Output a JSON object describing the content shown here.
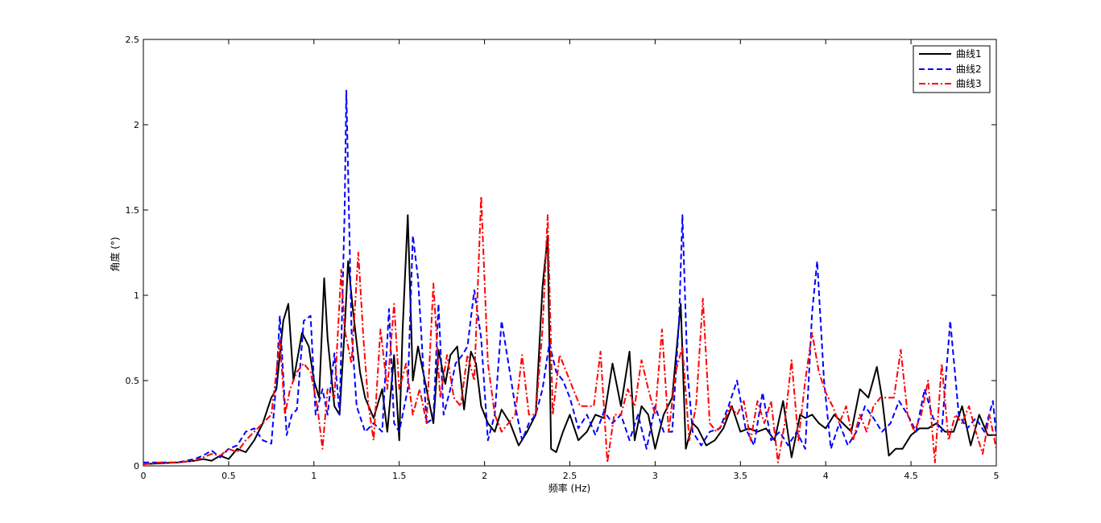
{
  "chart_data": {
    "type": "line",
    "xlabel": "频率 (Hz)",
    "ylabel": "角度 (°)",
    "xlim": [
      0,
      5
    ],
    "ylim": [
      0,
      2.5
    ],
    "xticks": [
      0,
      0.5,
      1,
      1.5,
      2,
      2.5,
      3,
      3.5,
      4,
      4.5,
      5
    ],
    "xtick_labels": [
      "0",
      "0.5",
      "1",
      "1.5",
      "2",
      "2.5",
      "3",
      "3.5",
      "4",
      "4.5",
      "5"
    ],
    "yticks": [
      0,
      0.5,
      1,
      1.5,
      2,
      2.5
    ],
    "ytick_labels": [
      "0",
      "0.5",
      "1",
      "1.5",
      "2",
      "2.5"
    ],
    "grid": false,
    "legend_position": "top-right",
    "series": [
      {
        "name": "曲线1",
        "color": "#000000",
        "dash": "solid",
        "x": [
          0,
          0.1,
          0.2,
          0.3,
          0.35,
          0.4,
          0.45,
          0.5,
          0.55,
          0.6,
          0.65,
          0.7,
          0.75,
          0.78,
          0.82,
          0.85,
          0.88,
          0.93,
          0.97,
          1.0,
          1.03,
          1.06,
          1.08,
          1.12,
          1.15,
          1.18,
          1.2,
          1.23,
          1.27,
          1.3,
          1.35,
          1.4,
          1.43,
          1.47,
          1.5,
          1.52,
          1.55,
          1.58,
          1.61,
          1.65,
          1.7,
          1.73,
          1.77,
          1.8,
          1.84,
          1.88,
          1.92,
          1.95,
          1.98,
          2.02,
          2.06,
          2.1,
          2.15,
          2.2,
          2.25,
          2.3,
          2.34,
          2.37,
          2.39,
          2.42,
          2.46,
          2.5,
          2.55,
          2.6,
          2.65,
          2.7,
          2.75,
          2.8,
          2.85,
          2.88,
          2.92,
          2.96,
          3.0,
          3.05,
          3.1,
          3.15,
          3.18,
          3.22,
          3.25,
          3.3,
          3.35,
          3.4,
          3.45,
          3.5,
          3.55,
          3.6,
          3.65,
          3.7,
          3.75,
          3.8,
          3.85,
          3.88,
          3.92,
          3.96,
          4.0,
          4.05,
          4.1,
          4.15,
          4.2,
          4.25,
          4.3,
          4.33,
          4.37,
          4.41,
          4.45,
          4.5,
          4.55,
          4.6,
          4.65,
          4.7,
          4.75,
          4.8,
          4.85,
          4.9,
          4.95,
          5.0
        ],
        "y": [
          0.01,
          0.015,
          0.02,
          0.03,
          0.04,
          0.03,
          0.06,
          0.04,
          0.1,
          0.08,
          0.15,
          0.25,
          0.4,
          0.45,
          0.85,
          0.95,
          0.5,
          0.78,
          0.7,
          0.5,
          0.4,
          1.1,
          0.75,
          0.35,
          0.3,
          0.8,
          1.2,
          0.9,
          0.55,
          0.4,
          0.28,
          0.45,
          0.2,
          0.65,
          0.15,
          0.8,
          1.47,
          0.5,
          0.7,
          0.5,
          0.25,
          0.68,
          0.48,
          0.65,
          0.7,
          0.33,
          0.67,
          0.6,
          0.35,
          0.25,
          0.2,
          0.33,
          0.25,
          0.12,
          0.2,
          0.3,
          1.05,
          1.35,
          0.1,
          0.08,
          0.2,
          0.3,
          0.15,
          0.2,
          0.3,
          0.28,
          0.6,
          0.35,
          0.67,
          0.15,
          0.35,
          0.3,
          0.1,
          0.3,
          0.4,
          0.95,
          0.1,
          0.25,
          0.22,
          0.12,
          0.15,
          0.22,
          0.35,
          0.2,
          0.22,
          0.2,
          0.22,
          0.15,
          0.38,
          0.05,
          0.3,
          0.28,
          0.3,
          0.25,
          0.22,
          0.3,
          0.25,
          0.2,
          0.45,
          0.4,
          0.58,
          0.4,
          0.06,
          0.1,
          0.1,
          0.18,
          0.22,
          0.22,
          0.25,
          0.2,
          0.2,
          0.35,
          0.12,
          0.3,
          0.18,
          0.18
        ]
      },
      {
        "name": "曲线2",
        "color": "#0000ff",
        "dash": "dashed",
        "x": [
          0,
          0.1,
          0.2,
          0.3,
          0.35,
          0.4,
          0.45,
          0.5,
          0.55,
          0.6,
          0.65,
          0.7,
          0.75,
          0.78,
          0.8,
          0.84,
          0.87,
          0.9,
          0.94,
          0.98,
          1.01,
          1.05,
          1.08,
          1.12,
          1.15,
          1.18,
          1.19,
          1.22,
          1.25,
          1.3,
          1.35,
          1.4,
          1.44,
          1.47,
          1.5,
          1.55,
          1.58,
          1.61,
          1.66,
          1.7,
          1.73,
          1.76,
          1.8,
          1.83,
          1.87,
          1.9,
          1.94,
          1.98,
          2.02,
          2.06,
          2.1,
          2.14,
          2.18,
          2.22,
          2.26,
          2.3,
          2.34,
          2.38,
          2.42,
          2.46,
          2.5,
          2.55,
          2.6,
          2.65,
          2.7,
          2.75,
          2.8,
          2.85,
          2.9,
          2.95,
          3.0,
          3.05,
          3.1,
          3.14,
          3.16,
          3.19,
          3.22,
          3.27,
          3.32,
          3.38,
          3.43,
          3.48,
          3.53,
          3.58,
          3.63,
          3.68,
          3.73,
          3.78,
          3.83,
          3.88,
          3.92,
          3.95,
          3.99,
          4.03,
          4.08,
          4.13,
          4.18,
          4.23,
          4.28,
          4.33,
          4.38,
          4.43,
          4.48,
          4.53,
          4.58,
          4.63,
          4.68,
          4.73,
          4.78,
          4.83,
          4.88,
          4.93,
          4.98,
          5.0
        ],
        "y": [
          0.02,
          0.02,
          0.02,
          0.04,
          0.06,
          0.09,
          0.05,
          0.1,
          0.12,
          0.2,
          0.22,
          0.15,
          0.13,
          0.5,
          0.88,
          0.18,
          0.3,
          0.33,
          0.85,
          0.88,
          0.3,
          0.45,
          0.3,
          0.66,
          0.3,
          1.5,
          2.2,
          0.8,
          0.35,
          0.2,
          0.25,
          0.2,
          0.92,
          0.25,
          0.2,
          0.45,
          1.35,
          1.1,
          0.25,
          0.28,
          0.95,
          0.3,
          0.45,
          0.6,
          0.65,
          0.7,
          1.03,
          0.75,
          0.15,
          0.3,
          0.85,
          0.6,
          0.35,
          0.15,
          0.25,
          0.3,
          0.45,
          0.72,
          0.55,
          0.5,
          0.4,
          0.22,
          0.3,
          0.18,
          0.32,
          0.25,
          0.3,
          0.15,
          0.3,
          0.1,
          0.35,
          0.2,
          0.2,
          0.85,
          1.47,
          0.55,
          0.2,
          0.12,
          0.2,
          0.22,
          0.35,
          0.5,
          0.22,
          0.12,
          0.43,
          0.15,
          0.2,
          0.12,
          0.2,
          0.1,
          0.9,
          1.2,
          0.5,
          0.1,
          0.25,
          0.12,
          0.2,
          0.35,
          0.28,
          0.2,
          0.25,
          0.38,
          0.3,
          0.2,
          0.45,
          0.28,
          0.2,
          0.85,
          0.3,
          0.22,
          0.28,
          0.2,
          0.38,
          0.18
        ]
      },
      {
        "name": "曲线3",
        "color": "#ff0000",
        "dash": "dashdot",
        "x": [
          0,
          0.1,
          0.2,
          0.3,
          0.35,
          0.4,
          0.45,
          0.5,
          0.55,
          0.6,
          0.65,
          0.7,
          0.75,
          0.78,
          0.8,
          0.83,
          0.86,
          0.9,
          0.94,
          0.98,
          1.02,
          1.05,
          1.08,
          1.12,
          1.16,
          1.18,
          1.22,
          1.26,
          1.29,
          1.32,
          1.35,
          1.39,
          1.43,
          1.47,
          1.5,
          1.54,
          1.58,
          1.62,
          1.66,
          1.7,
          1.74,
          1.78,
          1.82,
          1.86,
          1.9,
          1.94,
          1.98,
          2.02,
          2.06,
          2.1,
          2.14,
          2.18,
          2.22,
          2.26,
          2.3,
          2.34,
          2.37,
          2.4,
          2.44,
          2.48,
          2.52,
          2.56,
          2.6,
          2.64,
          2.68,
          2.72,
          2.76,
          2.8,
          2.84,
          2.88,
          2.92,
          2.96,
          3.0,
          3.04,
          3.08,
          3.12,
          3.16,
          3.2,
          3.24,
          3.28,
          3.32,
          3.36,
          3.4,
          3.44,
          3.48,
          3.52,
          3.56,
          3.6,
          3.64,
          3.68,
          3.72,
          3.76,
          3.8,
          3.84,
          3.88,
          3.92,
          3.96,
          4.0,
          4.04,
          4.08,
          4.12,
          4.16,
          4.2,
          4.24,
          4.28,
          4.32,
          4.36,
          4.4,
          4.44,
          4.48,
          4.52,
          4.56,
          4.6,
          4.64,
          4.68,
          4.72,
          4.76,
          4.8,
          4.84,
          4.88,
          4.92,
          4.96,
          5.0
        ],
        "y": [
          0.01,
          0.02,
          0.02,
          0.03,
          0.05,
          0.07,
          0.06,
          0.1,
          0.08,
          0.15,
          0.2,
          0.25,
          0.3,
          0.55,
          0.75,
          0.3,
          0.45,
          0.55,
          0.6,
          0.55,
          0.35,
          0.1,
          0.45,
          0.4,
          1.15,
          0.8,
          0.6,
          1.25,
          0.75,
          0.35,
          0.15,
          0.8,
          0.45,
          0.95,
          0.45,
          0.6,
          0.3,
          0.45,
          0.25,
          1.07,
          0.4,
          0.65,
          0.4,
          0.35,
          0.65,
          0.5,
          1.58,
          0.6,
          0.3,
          0.2,
          0.25,
          0.3,
          0.65,
          0.3,
          0.3,
          0.8,
          1.47,
          0.3,
          0.65,
          0.55,
          0.45,
          0.35,
          0.35,
          0.35,
          0.67,
          0.02,
          0.3,
          0.3,
          0.45,
          0.35,
          0.62,
          0.45,
          0.3,
          0.8,
          0.2,
          0.55,
          0.7,
          0.15,
          0.35,
          0.98,
          0.25,
          0.2,
          0.25,
          0.35,
          0.3,
          0.38,
          0.15,
          0.38,
          0.25,
          0.38,
          0.02,
          0.25,
          0.62,
          0.15,
          0.5,
          0.78,
          0.55,
          0.43,
          0.35,
          0.25,
          0.35,
          0.15,
          0.3,
          0.2,
          0.35,
          0.4,
          0.4,
          0.4,
          0.68,
          0.3,
          0.2,
          0.3,
          0.5,
          0.02,
          0.6,
          0.15,
          0.3,
          0.25,
          0.35,
          0.2,
          0.07,
          0.3,
          0.1
        ]
      }
    ]
  }
}
